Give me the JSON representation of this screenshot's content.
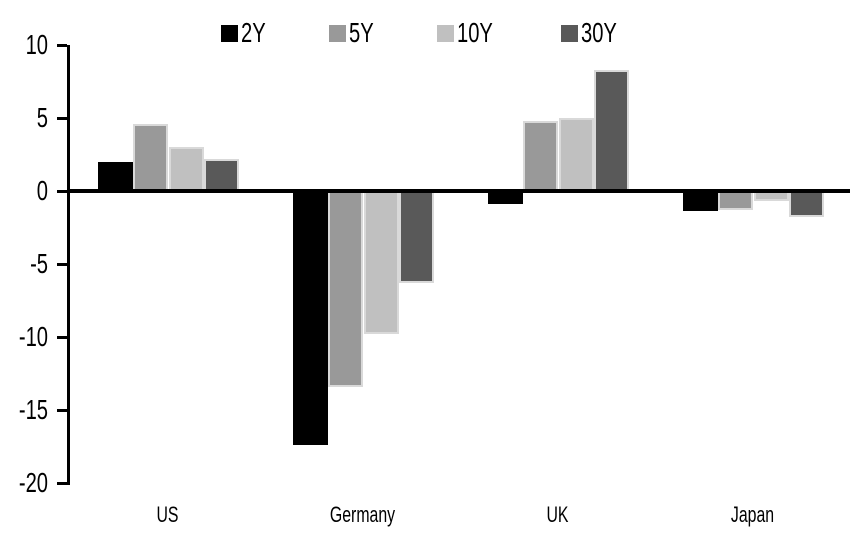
{
  "chart_data": {
    "type": "bar",
    "title": "",
    "categories": [
      "US",
      "Germany",
      "UK",
      "Japan"
    ],
    "series": [
      {
        "name": "2Y",
        "color": "#000000",
        "values": [
          2.0,
          -17.4,
          -0.9,
          -1.4
        ]
      },
      {
        "name": "5Y",
        "color": "#999999",
        "values": [
          4.6,
          -13.4,
          4.8,
          -1.3
        ]
      },
      {
        "name": "10Y",
        "color": "#c0c0c0",
        "values": [
          3.0,
          -9.8,
          5.0,
          -0.7
        ]
      },
      {
        "name": "30Y",
        "color": "#595959",
        "values": [
          2.2,
          -6.3,
          8.3,
          -1.8
        ]
      }
    ],
    "ylim": [
      -20,
      10
    ],
    "yticks": [
      10,
      5,
      0,
      -5,
      -10,
      -15,
      -20
    ],
    "xlabel": "",
    "ylabel": "",
    "grid": false,
    "legend_position": "top",
    "colors": {
      "background": "#ffffff",
      "axis": "#000000",
      "bar_border": "#d9d9d9"
    }
  }
}
